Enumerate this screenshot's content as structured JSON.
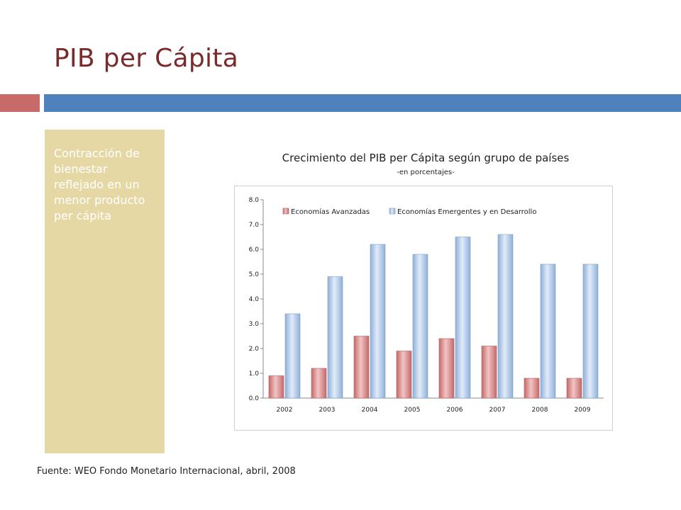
{
  "slide": {
    "title": "PIB per Cápita",
    "side_text": "Contracción de bienestar reflejado en un menor producto per cápita",
    "source": "Fuente: WEO Fondo Monetario Internacional, abril, 2008"
  },
  "colors": {
    "title": "#7a2a2a",
    "accent_red": "#c96a6a",
    "accent_blue": "#4f81bd",
    "panel": "#e5d8a5",
    "series_red": "#e6a3a3",
    "series_blue": "#c5d9f1"
  },
  "chart_data": {
    "type": "bar",
    "title": "Crecimiento del PIB per Cápita según grupo de países",
    "subtitle": "-en porcentajes-",
    "categories": [
      "2002",
      "2003",
      "2004",
      "2005",
      "2006",
      "2007",
      "2008",
      "2009"
    ],
    "series": [
      {
        "name": "Economías Avanzadas",
        "values": [
          0.9,
          1.2,
          2.5,
          1.9,
          2.4,
          2.1,
          0.8,
          0.8
        ]
      },
      {
        "name": "Economías Emergentes y en Desarrollo",
        "values": [
          3.4,
          4.9,
          6.2,
          5.8,
          6.5,
          6.6,
          5.4,
          5.4
        ]
      }
    ],
    "ylim": [
      0,
      8
    ],
    "yticks": [
      "0.0",
      "1.0",
      "2.0",
      "3.0",
      "4.0",
      "5.0",
      "6.0",
      "7.0",
      "8.0"
    ],
    "legend": "top-left",
    "grid": false
  }
}
